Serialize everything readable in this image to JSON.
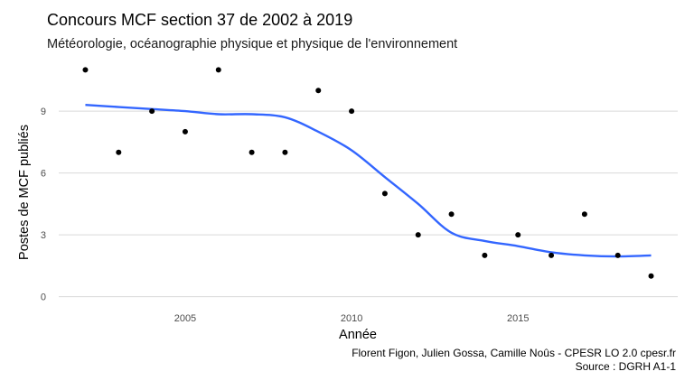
{
  "header": {
    "title": "Concours MCF section 37 de 2002 à 2019",
    "subtitle": "Météorologie, océanographie physique et physique de l'environnement"
  },
  "caption": {
    "line1": "Florent Figon, Julien Gossa, Camille Noûs - CPESR LO 2.0 cpesr.fr",
    "line2": "Source : DGRH A1-1"
  },
  "colors": {
    "points": "#000000",
    "smooth": "#3366FF",
    "grid": "#d9d9d9"
  },
  "chart_data": {
    "type": "scatter",
    "title": "Concours MCF section 37 de 2002 à 2019",
    "subtitle": "Météorologie, océanographie physique et physique de l'environnement",
    "xlabel": "Année",
    "ylabel": "Postes de MCF publiés",
    "xlim": [
      2001.2,
      2019.8
    ],
    "ylim": [
      -0.5,
      11.5
    ],
    "x_ticks": [
      2005,
      2010,
      2015
    ],
    "y_ticks": [
      0,
      3,
      6,
      9
    ],
    "grid": "horizontal",
    "points": [
      {
        "x": 2002,
        "y": 11
      },
      {
        "x": 2003,
        "y": 7
      },
      {
        "x": 2004,
        "y": 9
      },
      {
        "x": 2005,
        "y": 8
      },
      {
        "x": 2006,
        "y": 11
      },
      {
        "x": 2007,
        "y": 7
      },
      {
        "x": 2008,
        "y": 7
      },
      {
        "x": 2009,
        "y": 10
      },
      {
        "x": 2010,
        "y": 9
      },
      {
        "x": 2011,
        "y": 5
      },
      {
        "x": 2012,
        "y": 3
      },
      {
        "x": 2013,
        "y": 4
      },
      {
        "x": 2014,
        "y": 2
      },
      {
        "x": 2015,
        "y": 3
      },
      {
        "x": 2016,
        "y": 2
      },
      {
        "x": 2017,
        "y": 4
      },
      {
        "x": 2018,
        "y": 2
      },
      {
        "x": 2019,
        "y": 1
      }
    ],
    "smooth": [
      {
        "x": 2002,
        "y": 9.3
      },
      {
        "x": 2003,
        "y": 9.2
      },
      {
        "x": 2004,
        "y": 9.1
      },
      {
        "x": 2005,
        "y": 9.0
      },
      {
        "x": 2006,
        "y": 8.85
      },
      {
        "x": 2007,
        "y": 8.85
      },
      {
        "x": 2008,
        "y": 8.7
      },
      {
        "x": 2009,
        "y": 8.0
      },
      {
        "x": 2010,
        "y": 7.1
      },
      {
        "x": 2011,
        "y": 5.8
      },
      {
        "x": 2012,
        "y": 4.5
      },
      {
        "x": 2013,
        "y": 3.1
      },
      {
        "x": 2014,
        "y": 2.7
      },
      {
        "x": 2015,
        "y": 2.45
      },
      {
        "x": 2016,
        "y": 2.15
      },
      {
        "x": 2017,
        "y": 2.0
      },
      {
        "x": 2018,
        "y": 1.95
      },
      {
        "x": 2019,
        "y": 2.0
      }
    ]
  }
}
